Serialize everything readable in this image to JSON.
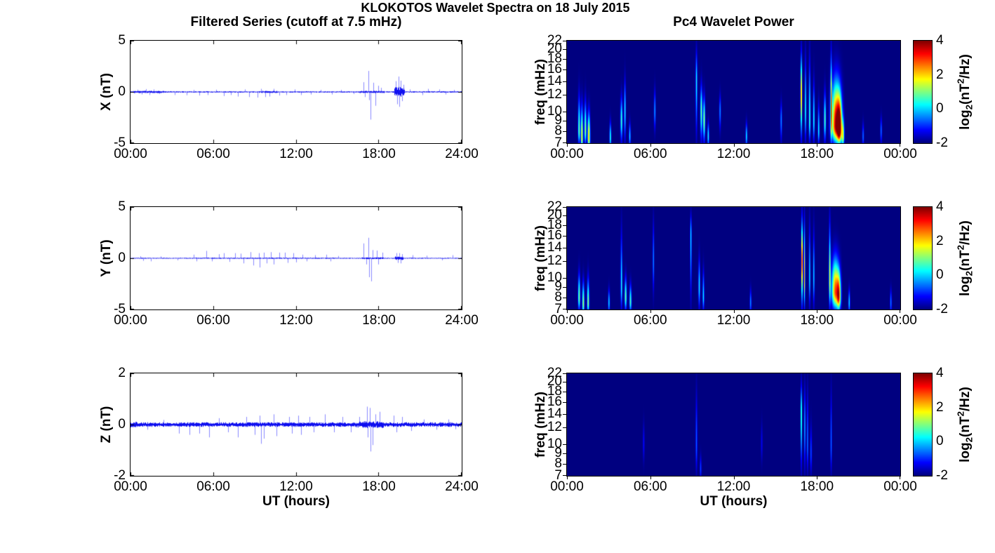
{
  "chart_data": {
    "type": [
      "line",
      "heatmap"
    ],
    "suptitle": "KLOKOTOS Wavelet Spectra on 18 July 2015",
    "columns": [
      {
        "title": "Filtered Series (cutoff at 7.5 mHz)",
        "xlabel": "UT (hours)",
        "x_ticks": [
          "00:00",
          "06:00",
          "12:00",
          "18:00",
          "24:00"
        ],
        "x_range_hours": [
          0,
          24
        ]
      },
      {
        "title": "Pc4 Wavelet Power",
        "xlabel": "UT (hours)",
        "x_ticks": [
          "00:00",
          "06:00",
          "12:00",
          "18:00",
          "00:00"
        ],
        "x_range_hours": [
          0,
          24
        ]
      }
    ],
    "line_color": "#0000EE",
    "spike_fields": [
      "t_hours",
      "amplitude_nT"
    ],
    "envelope_fields": [
      "t_start_hours",
      "t_end_hours",
      "noise_amplitude_nT"
    ],
    "timeseries": [
      {
        "ylabel": "X (nT)",
        "ylim": [
          -5,
          5
        ],
        "ytick_labels": [
          5,
          0,
          -5
        ],
        "seed": 11,
        "noise_base": 0.055,
        "noise_envelope": [
          [
            0.2,
            2.4,
            0.1
          ],
          [
            9.3,
            10.6,
            0.09
          ],
          [
            16.6,
            18.4,
            0.09
          ],
          [
            19.15,
            19.9,
            0.42
          ],
          [
            21.5,
            24,
            0.05
          ]
        ],
        "spikes": [
          [
            0.5,
            0.22
          ],
          [
            0.8,
            -0.25
          ],
          [
            1.1,
            0.28
          ],
          [
            1.4,
            -0.3
          ],
          [
            1.7,
            0.25
          ],
          [
            2.1,
            -0.2
          ],
          [
            3.2,
            -0.3
          ],
          [
            4.1,
            -0.32
          ],
          [
            4.6,
            0.2
          ],
          [
            5.0,
            -0.35
          ],
          [
            5.6,
            -0.3
          ],
          [
            6.2,
            0.22
          ],
          [
            6.8,
            -0.4
          ],
          [
            7.3,
            -0.3
          ],
          [
            7.8,
            -0.45
          ],
          [
            8.3,
            0.25
          ],
          [
            8.6,
            -0.5
          ],
          [
            9.2,
            -0.55
          ],
          [
            9.5,
            0.3
          ],
          [
            9.8,
            -0.5
          ],
          [
            10.1,
            -0.45
          ],
          [
            10.4,
            0.3
          ],
          [
            10.8,
            -0.35
          ],
          [
            11.3,
            -0.3
          ],
          [
            11.9,
            0.25
          ],
          [
            12.4,
            -0.3
          ],
          [
            13.1,
            -0.25
          ],
          [
            13.8,
            0.2
          ],
          [
            14.6,
            -0.25
          ],
          [
            15.3,
            0.2
          ],
          [
            16.2,
            -0.2
          ],
          [
            16.9,
            0.95
          ],
          [
            17.0,
            -0.5
          ],
          [
            17.25,
            2.05
          ],
          [
            17.35,
            -0.8
          ],
          [
            17.45,
            -2.7
          ],
          [
            17.65,
            0.9
          ],
          [
            17.8,
            -1.35
          ],
          [
            18.0,
            0.6
          ],
          [
            18.2,
            0.4
          ],
          [
            19.25,
            1.05
          ],
          [
            19.35,
            -1.2
          ],
          [
            19.45,
            1.5
          ],
          [
            19.5,
            -1.45
          ],
          [
            19.6,
            1.1
          ],
          [
            19.7,
            -0.9
          ],
          [
            19.8,
            0.7
          ],
          [
            20.3,
            0.25
          ],
          [
            21.2,
            -0.3
          ],
          [
            21.6,
            0.3
          ],
          [
            22.4,
            0.25
          ],
          [
            22.9,
            -0.25
          ],
          [
            23.5,
            0.2
          ]
        ]
      },
      {
        "ylabel": "Y (nT)",
        "ylim": [
          -5,
          5
        ],
        "ytick_labels": [
          5,
          0,
          -5
        ],
        "seed": 23,
        "noise_base": 0.04,
        "noise_envelope": [
          [
            4.5,
            15,
            0.05
          ],
          [
            16.8,
            18.4,
            0.07
          ],
          [
            19.2,
            19.8,
            0.16
          ]
        ],
        "spikes": [
          [
            0.7,
            0.2
          ],
          [
            0.9,
            -0.25
          ],
          [
            1.5,
            -0.3
          ],
          [
            2.2,
            0.18
          ],
          [
            3.4,
            -0.2
          ],
          [
            4.6,
            0.35
          ],
          [
            4.8,
            -0.3
          ],
          [
            5.5,
            0.72
          ],
          [
            5.9,
            -0.3
          ],
          [
            6.4,
            0.4
          ],
          [
            6.8,
            0.5
          ],
          [
            7.2,
            -0.35
          ],
          [
            7.6,
            0.5
          ],
          [
            8.0,
            0.45
          ],
          [
            8.2,
            -0.5
          ],
          [
            8.7,
            0.6
          ],
          [
            8.9,
            -0.7
          ],
          [
            9.3,
            0.5
          ],
          [
            9.4,
            -0.9
          ],
          [
            9.7,
            0.55
          ],
          [
            9.9,
            -0.5
          ],
          [
            10.2,
            0.6
          ],
          [
            10.4,
            -0.6
          ],
          [
            10.8,
            0.55
          ],
          [
            11.2,
            0.55
          ],
          [
            11.4,
            -0.45
          ],
          [
            11.8,
            0.5
          ],
          [
            12.0,
            -0.4
          ],
          [
            12.5,
            0.35
          ],
          [
            12.8,
            -0.3
          ],
          [
            13.4,
            0.3
          ],
          [
            14.2,
            0.35
          ],
          [
            14.5,
            -0.3
          ],
          [
            15.1,
            0.22
          ],
          [
            16.9,
            1.45
          ],
          [
            17.1,
            -0.6
          ],
          [
            17.25,
            2.0
          ],
          [
            17.3,
            -1.85
          ],
          [
            17.5,
            -2.25
          ],
          [
            17.6,
            0.8
          ],
          [
            17.9,
            0.75
          ],
          [
            18.0,
            -0.6
          ],
          [
            18.3,
            0.55
          ],
          [
            19.3,
            0.5
          ],
          [
            19.4,
            -0.45
          ],
          [
            19.5,
            0.5
          ],
          [
            19.6,
            -0.5
          ],
          [
            19.7,
            0.4
          ],
          [
            20.5,
            0.3
          ],
          [
            21.5,
            0.25
          ],
          [
            22.6,
            -0.2
          ],
          [
            23.4,
            0.3
          ]
        ]
      },
      {
        "ylabel": "Z (nT)",
        "ylim": [
          -2,
          2
        ],
        "ytick_labels": [
          2,
          0,
          -2
        ],
        "seed": 37,
        "noise_base": 0.075,
        "noise_envelope": [
          [
            0,
            0.5,
            0.09
          ],
          [
            16.4,
            18.4,
            0.11
          ]
        ],
        "spikes": [
          [
            1.2,
            -0.2
          ],
          [
            2.4,
            0.18
          ],
          [
            3.5,
            -0.35
          ],
          [
            4.3,
            -0.4
          ],
          [
            5.0,
            -0.35
          ],
          [
            5.7,
            -0.5
          ],
          [
            6.4,
            0.25
          ],
          [
            7.1,
            -0.3
          ],
          [
            7.8,
            -0.5
          ],
          [
            8.4,
            0.3
          ],
          [
            9.0,
            -0.4
          ],
          [
            9.4,
            0.35
          ],
          [
            9.5,
            -0.75
          ],
          [
            9.7,
            -0.55
          ],
          [
            10.4,
            0.4
          ],
          [
            10.6,
            -0.45
          ],
          [
            11.5,
            0.3
          ],
          [
            11.7,
            -0.35
          ],
          [
            12.2,
            0.35
          ],
          [
            12.4,
            -0.4
          ],
          [
            13.0,
            0.3
          ],
          [
            13.3,
            -0.3
          ],
          [
            14.1,
            0.4
          ],
          [
            14.8,
            -0.3
          ],
          [
            15.4,
            0.3
          ],
          [
            16.0,
            -0.3
          ],
          [
            16.6,
            0.3
          ],
          [
            17.15,
            0.7
          ],
          [
            17.2,
            -0.5
          ],
          [
            17.4,
            0.65
          ],
          [
            17.45,
            -1.05
          ],
          [
            17.6,
            -0.8
          ],
          [
            17.8,
            0.4
          ],
          [
            18.1,
            0.5
          ],
          [
            19.1,
            0.35
          ],
          [
            19.3,
            -0.3
          ],
          [
            19.7,
            0.3
          ],
          [
            20.4,
            -0.25
          ],
          [
            21.3,
            0.2
          ],
          [
            22.2,
            -0.2
          ],
          [
            23.1,
            0.2
          ],
          [
            23.6,
            -0.18
          ]
        ]
      }
    ],
    "event_fields": [
      "t_hours",
      "width_hours",
      "f_low_mHz",
      "f_high_mHz",
      "f_peak_mHz",
      "peak_log2_power"
    ],
    "spectrograms": [
      {
        "ylabel": "freq (mHz)",
        "flim": [
          7,
          22
        ],
        "ftick_labels": [
          22,
          20,
          18,
          16,
          14,
          12,
          10,
          9,
          8,
          7
        ],
        "events": [
          [
            0.85,
            0.05,
            7,
            13.5,
            8,
            1.1
          ],
          [
            1.05,
            0.05,
            7,
            12,
            7.4,
            2.1
          ],
          [
            1.3,
            0.05,
            7,
            12.5,
            8,
            1.3
          ],
          [
            1.55,
            0.06,
            7,
            11,
            7.4,
            2.3
          ],
          [
            3.1,
            0.04,
            7,
            9.5,
            7.4,
            0.7
          ],
          [
            3.9,
            0.05,
            7,
            13,
            9,
            0.7
          ],
          [
            4.15,
            0.04,
            7,
            16,
            10,
            0.4
          ],
          [
            4.5,
            0.04,
            7,
            9,
            7.5,
            0.2
          ],
          [
            6.3,
            0.04,
            8,
            14,
            10,
            -0.2
          ],
          [
            9.3,
            0.04,
            7,
            22,
            14,
            0.4
          ],
          [
            9.65,
            0.05,
            7,
            15,
            10,
            1.0
          ],
          [
            9.85,
            0.05,
            7,
            13,
            9,
            1.3
          ],
          [
            10.15,
            0.04,
            7,
            9,
            7.5,
            0.5
          ],
          [
            11.0,
            0.04,
            8,
            13,
            10,
            -0.3
          ],
          [
            12.9,
            0.04,
            7,
            9,
            7.5,
            0.3
          ],
          [
            15.4,
            0.04,
            7,
            12,
            9,
            -0.3
          ],
          [
            16.85,
            0.035,
            7,
            22,
            12,
            2.9
          ],
          [
            17.15,
            0.035,
            7,
            22,
            10,
            0.6
          ],
          [
            17.45,
            0.04,
            7,
            22,
            9,
            0.8
          ],
          [
            17.75,
            0.04,
            7,
            16,
            9,
            0.5
          ],
          [
            18.1,
            0.04,
            7,
            12,
            8,
            0.4
          ],
          [
            18.55,
            0.05,
            7,
            14,
            9,
            0.8
          ],
          [
            19.0,
            0.035,
            7,
            22,
            10,
            2.7
          ],
          [
            19.35,
            0.22,
            7,
            17,
            8.5,
            3.7
          ],
          [
            19.6,
            0.12,
            7,
            14,
            8,
            2.8
          ],
          [
            19.85,
            0.06,
            7,
            10,
            7.5,
            1.2
          ],
          [
            21.3,
            0.04,
            7,
            9,
            7.5,
            -0.5
          ],
          [
            22.6,
            0.04,
            7,
            10,
            8,
            -0.5
          ]
        ]
      },
      {
        "ylabel": "freq (mHz)",
        "flim": [
          7,
          22
        ],
        "ftick_labels": [
          22,
          20,
          18,
          16,
          14,
          12,
          10,
          9,
          8,
          7
        ],
        "events": [
          [
            0.85,
            0.05,
            7,
            11.5,
            8,
            1.2
          ],
          [
            1.15,
            0.05,
            7,
            10.5,
            7.4,
            1.4
          ],
          [
            1.5,
            0.05,
            7,
            11,
            7.5,
            1.3
          ],
          [
            3.0,
            0.04,
            7,
            9,
            7.5,
            0.2
          ],
          [
            3.9,
            0.04,
            7,
            20,
            9,
            0.5
          ],
          [
            4.2,
            0.05,
            7,
            11,
            8,
            1.0
          ],
          [
            4.55,
            0.05,
            7,
            10,
            7.6,
            0.8
          ],
          [
            6.2,
            0.035,
            8,
            22,
            12,
            -0.3
          ],
          [
            8.9,
            0.035,
            7,
            22,
            16,
            0.3
          ],
          [
            9.5,
            0.04,
            7,
            14,
            9,
            0.4
          ],
          [
            9.8,
            0.04,
            7,
            12,
            8,
            0.3
          ],
          [
            13.2,
            0.04,
            7,
            9,
            7.5,
            -0.3
          ],
          [
            16.9,
            0.035,
            7,
            22,
            12,
            3.9
          ],
          [
            17.08,
            0.03,
            7,
            22,
            10,
            2.2
          ],
          [
            17.45,
            0.035,
            7,
            22,
            10,
            0.3
          ],
          [
            17.75,
            0.035,
            7,
            20,
            10,
            0.2
          ],
          [
            18.9,
            0.04,
            7,
            22,
            10,
            1.6
          ],
          [
            19.3,
            0.18,
            7,
            14.5,
            8.5,
            2.7
          ],
          [
            19.55,
            0.1,
            7,
            12,
            8,
            2.1
          ],
          [
            20.3,
            0.04,
            7,
            9,
            7.5,
            0.2
          ],
          [
            23.3,
            0.04,
            7,
            9,
            7.5,
            -0.4
          ]
        ]
      },
      {
        "ylabel": "freq (mHz)",
        "flim": [
          7,
          22
        ],
        "ftick_labels": [
          22,
          20,
          18,
          16,
          14,
          12,
          10,
          9,
          8,
          7
        ],
        "events": [
          [
            5.5,
            0.04,
            8,
            14,
            10,
            -1.2
          ],
          [
            9.3,
            0.04,
            7,
            22,
            10,
            -0.6
          ],
          [
            9.6,
            0.04,
            7,
            9,
            7.5,
            -0.8
          ],
          [
            14.0,
            0.04,
            8,
            14,
            10,
            -1.3
          ],
          [
            16.85,
            0.03,
            7,
            22,
            14,
            1.3
          ],
          [
            17.1,
            0.035,
            7,
            22,
            12,
            -0.1
          ],
          [
            17.3,
            0.035,
            7,
            22,
            10,
            -0.4
          ],
          [
            17.55,
            0.04,
            7,
            14,
            9,
            -0.7
          ],
          [
            19.0,
            0.035,
            7,
            22,
            10,
            -0.5
          ]
        ]
      }
    ],
    "colorbar": {
      "colormap": "jet",
      "clim": [
        -2,
        4
      ],
      "tick_labels": [
        4,
        2,
        0,
        -2
      ],
      "label_text": "log2(nT2/Hz)",
      "label_parts": [
        "log",
        "2",
        "(nT",
        "2",
        "/Hz)"
      ]
    }
  }
}
